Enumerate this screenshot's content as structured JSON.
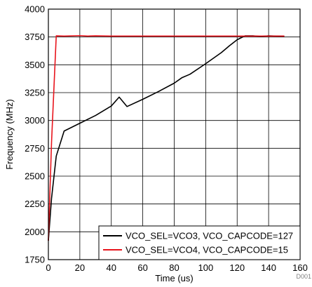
{
  "chart_data": {
    "type": "line",
    "xlabel": "Time (us)",
    "ylabel": "Frequency (MHz)",
    "xlim": [
      0,
      160
    ],
    "ylim": [
      1750,
      4000
    ],
    "xticks": [
      0,
      20,
      40,
      60,
      80,
      100,
      120,
      140,
      160
    ],
    "yticks": [
      1750,
      2000,
      2250,
      2500,
      2750,
      3000,
      3250,
      3500,
      3750,
      4000
    ],
    "grid": true,
    "legend_position": "bottom-right",
    "watermark": "D001",
    "series": [
      {
        "name": "VCO_SEL=VCO3, VCO_CAPCODE=127",
        "color": "#000000",
        "x": [
          0,
          2,
          5,
          10,
          20,
          30,
          40,
          45,
          50,
          60,
          70,
          80,
          85,
          90,
          100,
          110,
          115,
          120,
          125,
          130,
          135,
          140,
          145,
          150
        ],
        "y": [
          1920,
          2300,
          2680,
          2905,
          2975,
          3045,
          3130,
          3210,
          3125,
          3190,
          3260,
          3335,
          3385,
          3415,
          3510,
          3610,
          3670,
          3725,
          3760,
          3760,
          3755,
          3760,
          3758,
          3757
        ]
      },
      {
        "name": "VCO_SEL=VCO4, VCO_CAPCODE=15",
        "color": "#e8141c",
        "x": [
          0,
          2,
          5,
          10,
          20,
          25,
          30,
          40,
          60,
          80,
          100,
          120,
          140,
          150
        ],
        "y": [
          1920,
          2800,
          3760,
          3758,
          3762,
          3758,
          3760,
          3758,
          3758,
          3758,
          3758,
          3758,
          3758,
          3758
        ]
      }
    ]
  }
}
